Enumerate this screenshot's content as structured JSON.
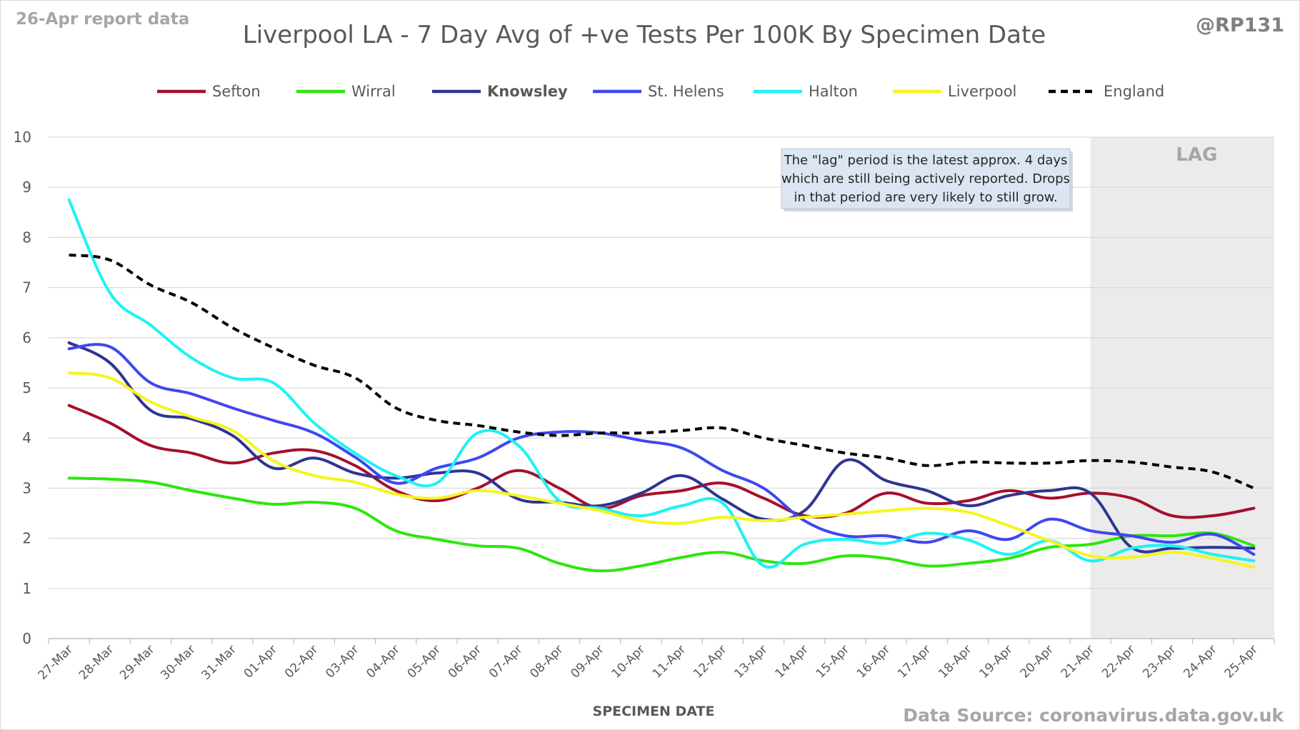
{
  "header": {
    "report_label": "26-Apr report data",
    "handle": "@RP131"
  },
  "footer": {
    "source": "Data Source: coronavirus.data.gov.uk"
  },
  "annotation": {
    "lines": [
      "The \"lag\" period is the latest approx. 4 days",
      "which are still being actively reported.  Drops",
      "in that period are very likely to still grow."
    ],
    "lag_label": "LAG"
  },
  "chart_data": {
    "type": "line",
    "title": "Liverpool LA - 7 Day Avg of +ve Tests Per 100K By Specimen Date",
    "xlabel": "SPECIMEN DATE",
    "ylabel": "",
    "ylim": [
      0,
      10
    ],
    "yticks": [
      0,
      1,
      2,
      3,
      4,
      5,
      6,
      7,
      8,
      9,
      10
    ],
    "grid": true,
    "legend_position": "top",
    "lag_region": {
      "from": "21-Apr",
      "to": "25-Apr"
    },
    "categories": [
      "27-Mar",
      "28-Mar",
      "29-Mar",
      "30-Mar",
      "31-Mar",
      "01-Apr",
      "02-Apr",
      "03-Apr",
      "04-Apr",
      "05-Apr",
      "06-Apr",
      "07-Apr",
      "08-Apr",
      "09-Apr",
      "10-Apr",
      "11-Apr",
      "12-Apr",
      "13-Apr",
      "14-Apr",
      "15-Apr",
      "16-Apr",
      "17-Apr",
      "18-Apr",
      "19-Apr",
      "20-Apr",
      "21-Apr",
      "22-Apr",
      "23-Apr",
      "24-Apr",
      "25-Apr"
    ],
    "series": [
      {
        "name": "Sefton",
        "color": "#a50f2d",
        "dash": "solid",
        "bold": false,
        "values": [
          4.65,
          4.3,
          3.85,
          3.7,
          3.5,
          3.7,
          3.75,
          3.45,
          2.95,
          2.75,
          3.0,
          3.35,
          3.0,
          2.6,
          2.85,
          2.95,
          3.1,
          2.8,
          2.45,
          2.5,
          2.9,
          2.7,
          2.75,
          2.95,
          2.8,
          2.9,
          2.8,
          2.45,
          2.45,
          2.6
        ]
      },
      {
        "name": "Wirral",
        "color": "#2ee60e",
        "dash": "solid",
        "bold": false,
        "values": [
          3.2,
          3.18,
          3.12,
          2.95,
          2.8,
          2.68,
          2.72,
          2.6,
          2.15,
          1.98,
          1.85,
          1.8,
          1.5,
          1.35,
          1.45,
          1.62,
          1.72,
          1.55,
          1.5,
          1.65,
          1.6,
          1.45,
          1.5,
          1.6,
          1.82,
          1.88,
          2.05,
          2.05,
          2.1,
          1.85
        ]
      },
      {
        "name": "Knowsley",
        "color": "#2e3592",
        "dash": "solid",
        "bold": true,
        "values": [
          5.9,
          5.5,
          4.55,
          4.38,
          4.05,
          3.4,
          3.6,
          3.3,
          3.2,
          3.3,
          3.3,
          2.78,
          2.72,
          2.65,
          2.9,
          3.25,
          2.78,
          2.38,
          2.55,
          3.55,
          3.15,
          2.95,
          2.65,
          2.85,
          2.95,
          2.9,
          1.82,
          1.8,
          1.82,
          1.8
        ]
      },
      {
        "name": "St. Helens",
        "color": "#3f47f0",
        "dash": "solid",
        "bold": false,
        "values": [
          5.78,
          5.82,
          5.1,
          4.88,
          4.6,
          4.35,
          4.1,
          3.62,
          3.1,
          3.4,
          3.6,
          4.0,
          4.12,
          4.1,
          3.95,
          3.8,
          3.35,
          3.0,
          2.35,
          2.05,
          2.05,
          1.92,
          2.15,
          1.98,
          2.38,
          2.15,
          2.05,
          1.92,
          2.08,
          1.68
        ]
      },
      {
        "name": "Halton",
        "color": "#1ef2f2",
        "dash": "solid",
        "bold": false,
        "values": [
          8.75,
          6.9,
          6.25,
          5.6,
          5.2,
          5.1,
          4.3,
          3.7,
          3.25,
          3.1,
          4.1,
          3.85,
          2.75,
          2.6,
          2.45,
          2.65,
          2.7,
          1.45,
          1.88,
          1.98,
          1.9,
          2.1,
          1.97,
          1.68,
          1.95,
          1.55,
          1.8,
          1.85,
          1.68,
          1.55
        ]
      },
      {
        "name": "Liverpool",
        "color": "#f5f51e",
        "dash": "solid",
        "bold": false,
        "values": [
          5.3,
          5.2,
          4.72,
          4.42,
          4.15,
          3.55,
          3.25,
          3.12,
          2.88,
          2.8,
          2.95,
          2.85,
          2.7,
          2.55,
          2.35,
          2.3,
          2.42,
          2.35,
          2.42,
          2.48,
          2.55,
          2.6,
          2.52,
          2.25,
          1.95,
          1.65,
          1.62,
          1.72,
          1.6,
          1.42
        ]
      },
      {
        "name": "England",
        "color": "#000000",
        "dash": "dashed",
        "bold": false,
        "values": [
          7.65,
          7.55,
          7.05,
          6.7,
          6.2,
          5.8,
          5.45,
          5.2,
          4.6,
          4.35,
          4.25,
          4.12,
          4.05,
          4.1,
          4.1,
          4.15,
          4.2,
          4.0,
          3.85,
          3.7,
          3.6,
          3.45,
          3.52,
          3.5,
          3.5,
          3.55,
          3.52,
          3.42,
          3.32,
          3.0
        ]
      }
    ]
  }
}
